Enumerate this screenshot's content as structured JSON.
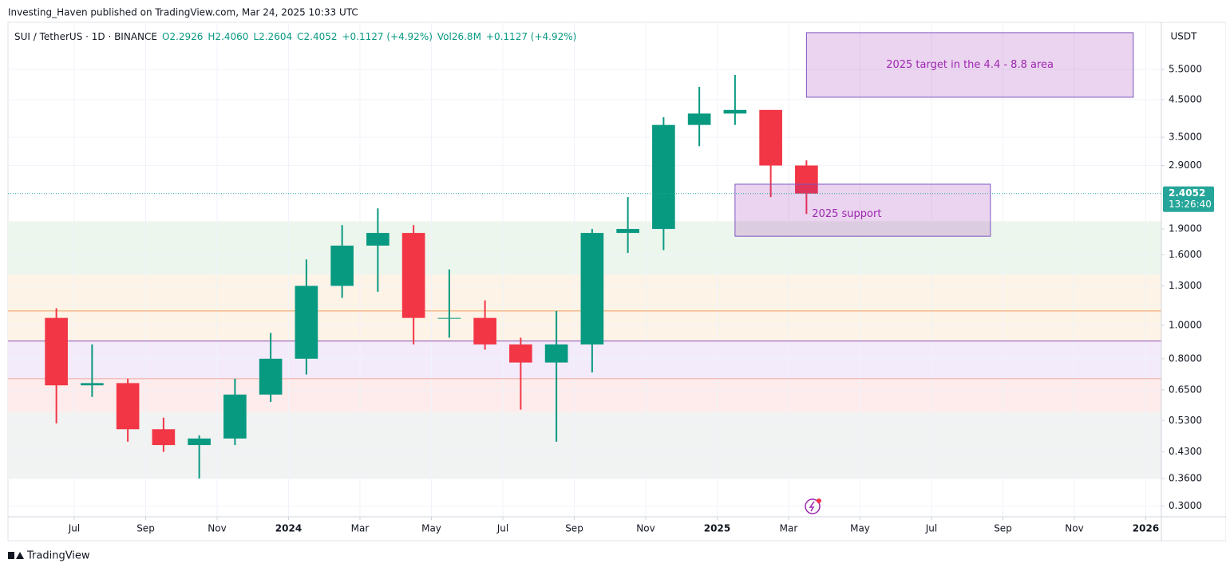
{
  "published": "Investing_Haven published on TradingView.com, Mar 24, 2025 10:33 UTC",
  "brand": "TradingView",
  "chart_data": {
    "type": "candlestick",
    "symbol": "SUI / TetherUS · 1D · BINANCE",
    "header": [
      "O2.2926",
      "H2.4060",
      "L2.2604",
      "C2.4052",
      "+0.1127 (+4.92%)",
      "Vol26.8M",
      "+0.1127 (+4.92%)"
    ],
    "currency": "USDT",
    "x": [
      "2023-06",
      "2023-07",
      "2023-08",
      "2023-09",
      "2023-10",
      "2023-11",
      "2023-12",
      "2024-01",
      "2024-02",
      "2024-03",
      "2024-04",
      "2024-05",
      "2024-06",
      "2024-07",
      "2024-08",
      "2024-09",
      "2024-10",
      "2024-11",
      "2024-12",
      "2025-01",
      "2025-02",
      "2025-03"
    ],
    "open": [
      1.05,
      0.67,
      0.68,
      0.5,
      0.45,
      0.47,
      0.63,
      0.8,
      1.3,
      1.7,
      1.85,
      1.05,
      1.05,
      0.88,
      0.78,
      0.88,
      1.85,
      1.9,
      3.8,
      4.1,
      4.2,
      2.9
    ],
    "high": [
      1.12,
      0.88,
      0.7,
      0.54,
      0.48,
      0.7,
      0.95,
      1.55,
      1.95,
      2.18,
      1.95,
      1.45,
      1.18,
      0.92,
      1.1,
      1.9,
      2.35,
      4.0,
      4.9,
      5.3,
      4.2,
      3.0
    ],
    "low": [
      0.52,
      0.62,
      0.46,
      0.43,
      0.36,
      0.45,
      0.6,
      0.72,
      1.2,
      1.25,
      0.88,
      0.92,
      0.85,
      0.57,
      0.46,
      0.73,
      1.62,
      1.65,
      3.3,
      3.8,
      2.35,
      2.1
    ],
    "close": [
      0.67,
      0.68,
      0.5,
      0.45,
      0.47,
      0.63,
      0.8,
      1.3,
      1.7,
      1.85,
      1.05,
      1.05,
      0.88,
      0.78,
      0.88,
      1.85,
      1.9,
      3.8,
      4.1,
      4.2,
      2.9,
      2.4052
    ],
    "up_color": "#089981",
    "down_color": "#f23645",
    "log_scale": true,
    "grid": true,
    "xlim": [
      "2023-05",
      "2026-01"
    ],
    "xticks": [
      {
        "value": "2023-07",
        "label": "Jul"
      },
      {
        "value": "2023-09",
        "label": "Sep"
      },
      {
        "value": "2023-11",
        "label": "Nov"
      },
      {
        "value": "2024-01",
        "label": "2024"
      },
      {
        "value": "2024-03",
        "label": "Mar"
      },
      {
        "value": "2024-05",
        "label": "May"
      },
      {
        "value": "2024-07",
        "label": "Jul"
      },
      {
        "value": "2024-09",
        "label": "Sep"
      },
      {
        "value": "2024-11",
        "label": "Nov"
      },
      {
        "value": "2025-01",
        "label": "2025"
      },
      {
        "value": "2025-03",
        "label": "Mar"
      },
      {
        "value": "2025-05",
        "label": "May"
      },
      {
        "value": "2025-07",
        "label": "Jul"
      },
      {
        "value": "2025-09",
        "label": "Sep"
      },
      {
        "value": "2025-11",
        "label": "Nov"
      },
      {
        "value": "2026-01",
        "label": "2026"
      }
    ],
    "ylim": [
      0.279,
      7.53
    ],
    "yticks": [
      {
        "value": 0.3,
        "label": "0.3000"
      },
      {
        "value": 0.36,
        "label": "0.3600"
      },
      {
        "value": 0.43,
        "label": "0.4300"
      },
      {
        "value": 0.53,
        "label": "0.5300"
      },
      {
        "value": 0.65,
        "label": "0.6500"
      },
      {
        "value": 0.8,
        "label": "0.8000"
      },
      {
        "value": 1.0,
        "label": "1.0000"
      },
      {
        "value": 1.3,
        "label": "1.3000"
      },
      {
        "value": 1.6,
        "label": "1.6000"
      },
      {
        "value": 1.9,
        "label": "1.9000"
      },
      {
        "value": 2.9,
        "label": "2.9000"
      },
      {
        "value": 3.5,
        "label": "3.5000"
      },
      {
        "value": 4.5,
        "label": "4.5000"
      },
      {
        "value": 5.5,
        "label": "5.5000"
      }
    ],
    "zones": [
      {
        "top": 2.0,
        "bottom": 1.4,
        "color": "#edf6ec"
      },
      {
        "top": 1.4,
        "bottom": 0.9,
        "color": "#fdf3e6"
      },
      {
        "top": 0.9,
        "bottom": 0.7,
        "color": "#f3eafa"
      },
      {
        "top": 0.7,
        "bottom": 0.56,
        "color": "#fdeceb"
      },
      {
        "top": 0.56,
        "bottom": 0.36,
        "color": "#f1f2f2"
      }
    ],
    "levels": [
      {
        "value": 1.1,
        "color": "#f0a060"
      },
      {
        "value": 0.9,
        "color": "#8a4fb0"
      },
      {
        "value": 0.7,
        "color": "#f2a8a0"
      }
    ],
    "annotations": [
      {
        "text": "2025 target in the 4.4 - 8.8 area",
        "x": [
          "2025-03",
          "2025-12"
        ],
        "y": [
          4.57,
          7.03
        ]
      },
      {
        "text": "2025 support",
        "x": [
          "2025-01",
          "2025-08"
        ],
        "y": [
          1.81,
          2.56
        ]
      }
    ],
    "last_price": 2.4052,
    "last_color": "#26a69a",
    "countdown": "13:26:40"
  }
}
